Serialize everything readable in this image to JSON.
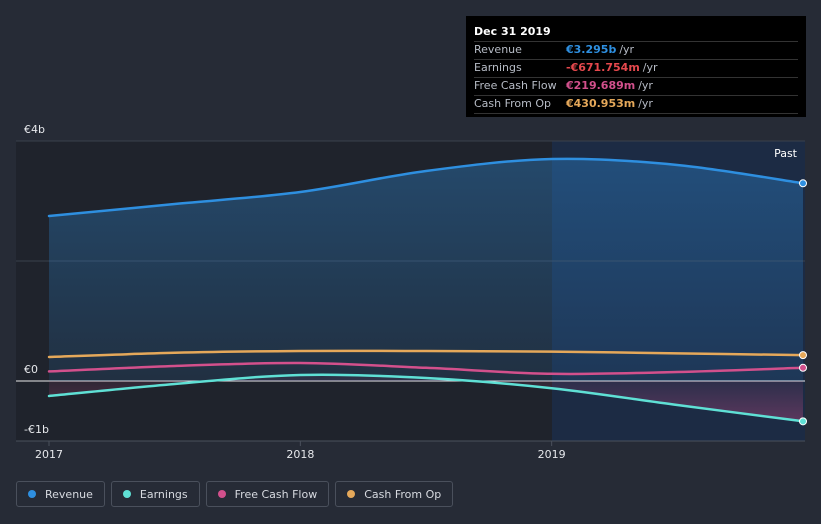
{
  "chart_data": {
    "type": "line",
    "x": [
      2017.0,
      2017.5,
      2018.0,
      2018.5,
      2019.0,
      2019.5,
      2020.0
    ],
    "x_ticks": [
      "2017",
      "2018",
      "2019"
    ],
    "y_ticks": [
      "€4b",
      "€0",
      "-€1b"
    ],
    "ylim": [
      -1.0,
      4.0
    ],
    "y_tick_values": [
      4,
      0,
      -1
    ],
    "past_label": "Past",
    "series": [
      {
        "name": "Revenue",
        "color": "#2e8fe0",
        "values": [
          2.75,
          2.95,
          3.15,
          3.5,
          3.7,
          3.6,
          3.295
        ]
      },
      {
        "name": "Earnings",
        "color": "#5fe0d5",
        "values": [
          -0.25,
          -0.05,
          0.1,
          0.05,
          -0.12,
          -0.4,
          -0.672
        ]
      },
      {
        "name": "Free Cash Flow",
        "color": "#d2508c",
        "values": [
          0.16,
          0.25,
          0.3,
          0.22,
          0.12,
          0.15,
          0.22
        ]
      },
      {
        "name": "Cash From Op",
        "color": "#e5a85a",
        "values": [
          0.4,
          0.47,
          0.5,
          0.5,
          0.49,
          0.46,
          0.431
        ]
      }
    ]
  },
  "tooltip": {
    "title": "Dec 31 2019",
    "rows": [
      {
        "label": "Revenue",
        "value": "€3.295b",
        "unit": "/yr",
        "color": "#2e8fe0"
      },
      {
        "label": "Earnings",
        "value": "-€671.754m",
        "unit": "/yr",
        "color": "#e5484d"
      },
      {
        "label": "Free Cash Flow",
        "value": "€219.689m",
        "unit": "/yr",
        "color": "#d2508c"
      },
      {
        "label": "Cash From Op",
        "value": "€430.953m",
        "unit": "/yr",
        "color": "#e5a85a"
      }
    ]
  },
  "legend": [
    {
      "label": "Revenue",
      "color": "#2e8fe0"
    },
    {
      "label": "Earnings",
      "color": "#5fe0d5"
    },
    {
      "label": "Free Cash Flow",
      "color": "#d2508c"
    },
    {
      "label": "Cash From Op",
      "color": "#e5a85a"
    }
  ]
}
